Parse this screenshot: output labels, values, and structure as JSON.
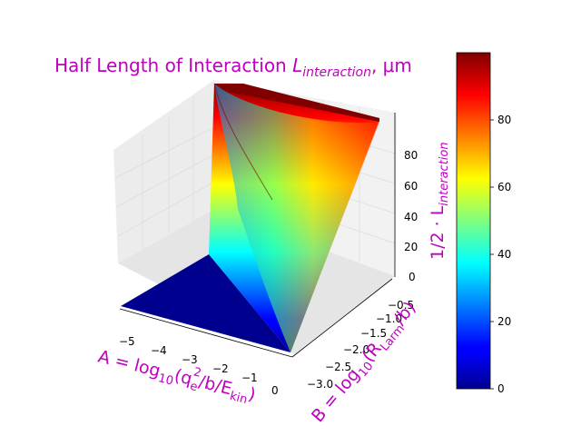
{
  "chart_data": {
    "type": "surface3d",
    "title": {
      "prefix": "Half Length of Interaction ",
      "symbol": "L",
      "subscript": "interaction",
      "suffix": ", μm"
    },
    "xlabel": {
      "prefix": "A = log",
      "base": "10",
      "open": "(q",
      "sub": "e",
      "sup": "2",
      "middle": "/b/E",
      "sub2": "kin",
      "close": ")"
    },
    "ylabel": {
      "prefix": "B = log",
      "base": "10",
      "open": "(R",
      "sub": "Larm",
      "close": "/b)"
    },
    "zlabel": {
      "prefix": "1/2 · L",
      "sub": "interaction"
    },
    "x_ticks": [
      "−5",
      "−4",
      "−3",
      "−2",
      "−1",
      "0"
    ],
    "y_ticks": [
      "−3.0",
      "−2.5",
      "−2.0",
      "−1.5",
      "−1.0",
      "−0.5"
    ],
    "z_ticks": [
      "0",
      "20",
      "40",
      "60",
      "80"
    ],
    "xlim": [
      -5,
      0
    ],
    "ylim": [
      -3,
      -0.5
    ],
    "zlim": [
      0,
      100
    ],
    "colorbar": {
      "ticks": [
        "0",
        "20",
        "40",
        "60",
        "80"
      ],
      "min": 0,
      "max": 100,
      "colormap": "jet"
    },
    "surface_notes": "z is near 0 for A below about -2.5 and rises steeply toward 100 as A approaches 0",
    "colors": {
      "label_color": "#bf00bf",
      "pane_color": "#f2f2f2",
      "grid_color": "#dcdcdc"
    }
  }
}
